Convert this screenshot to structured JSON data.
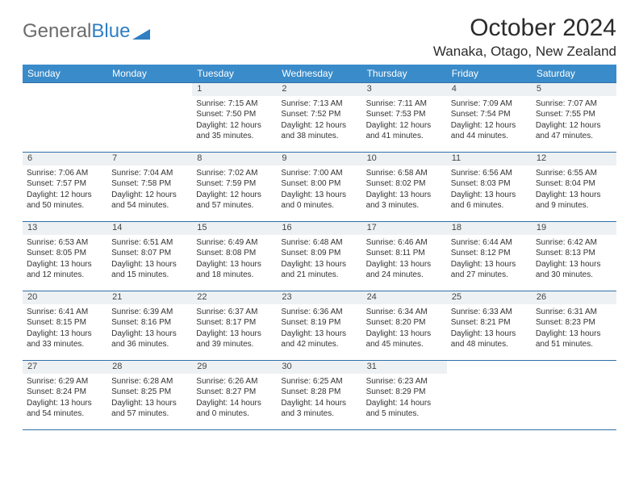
{
  "brand": {
    "general": "General",
    "blue": "Blue"
  },
  "title": "October 2024",
  "location": "Wanaka, Otago, New Zealand",
  "colors": {
    "header_bg": "#3a8bc9",
    "row_border": "#2f6fa8",
    "daynum_bg": "#eef1f3",
    "text": "#333333",
    "logo_gray": "#6b6b6b",
    "logo_blue": "#2f7fc2"
  },
  "weekdays": [
    "Sunday",
    "Monday",
    "Tuesday",
    "Wednesday",
    "Thursday",
    "Friday",
    "Saturday"
  ],
  "weeks": [
    [
      null,
      null,
      {
        "n": "1",
        "sr": "Sunrise: 7:15 AM",
        "ss": "Sunset: 7:50 PM",
        "dl": "Daylight: 12 hours and 35 minutes."
      },
      {
        "n": "2",
        "sr": "Sunrise: 7:13 AM",
        "ss": "Sunset: 7:52 PM",
        "dl": "Daylight: 12 hours and 38 minutes."
      },
      {
        "n": "3",
        "sr": "Sunrise: 7:11 AM",
        "ss": "Sunset: 7:53 PM",
        "dl": "Daylight: 12 hours and 41 minutes."
      },
      {
        "n": "4",
        "sr": "Sunrise: 7:09 AM",
        "ss": "Sunset: 7:54 PM",
        "dl": "Daylight: 12 hours and 44 minutes."
      },
      {
        "n": "5",
        "sr": "Sunrise: 7:07 AM",
        "ss": "Sunset: 7:55 PM",
        "dl": "Daylight: 12 hours and 47 minutes."
      }
    ],
    [
      {
        "n": "6",
        "sr": "Sunrise: 7:06 AM",
        "ss": "Sunset: 7:57 PM",
        "dl": "Daylight: 12 hours and 50 minutes."
      },
      {
        "n": "7",
        "sr": "Sunrise: 7:04 AM",
        "ss": "Sunset: 7:58 PM",
        "dl": "Daylight: 12 hours and 54 minutes."
      },
      {
        "n": "8",
        "sr": "Sunrise: 7:02 AM",
        "ss": "Sunset: 7:59 PM",
        "dl": "Daylight: 12 hours and 57 minutes."
      },
      {
        "n": "9",
        "sr": "Sunrise: 7:00 AM",
        "ss": "Sunset: 8:00 PM",
        "dl": "Daylight: 13 hours and 0 minutes."
      },
      {
        "n": "10",
        "sr": "Sunrise: 6:58 AM",
        "ss": "Sunset: 8:02 PM",
        "dl": "Daylight: 13 hours and 3 minutes."
      },
      {
        "n": "11",
        "sr": "Sunrise: 6:56 AM",
        "ss": "Sunset: 8:03 PM",
        "dl": "Daylight: 13 hours and 6 minutes."
      },
      {
        "n": "12",
        "sr": "Sunrise: 6:55 AM",
        "ss": "Sunset: 8:04 PM",
        "dl": "Daylight: 13 hours and 9 minutes."
      }
    ],
    [
      {
        "n": "13",
        "sr": "Sunrise: 6:53 AM",
        "ss": "Sunset: 8:05 PM",
        "dl": "Daylight: 13 hours and 12 minutes."
      },
      {
        "n": "14",
        "sr": "Sunrise: 6:51 AM",
        "ss": "Sunset: 8:07 PM",
        "dl": "Daylight: 13 hours and 15 minutes."
      },
      {
        "n": "15",
        "sr": "Sunrise: 6:49 AM",
        "ss": "Sunset: 8:08 PM",
        "dl": "Daylight: 13 hours and 18 minutes."
      },
      {
        "n": "16",
        "sr": "Sunrise: 6:48 AM",
        "ss": "Sunset: 8:09 PM",
        "dl": "Daylight: 13 hours and 21 minutes."
      },
      {
        "n": "17",
        "sr": "Sunrise: 6:46 AM",
        "ss": "Sunset: 8:11 PM",
        "dl": "Daylight: 13 hours and 24 minutes."
      },
      {
        "n": "18",
        "sr": "Sunrise: 6:44 AM",
        "ss": "Sunset: 8:12 PM",
        "dl": "Daylight: 13 hours and 27 minutes."
      },
      {
        "n": "19",
        "sr": "Sunrise: 6:42 AM",
        "ss": "Sunset: 8:13 PM",
        "dl": "Daylight: 13 hours and 30 minutes."
      }
    ],
    [
      {
        "n": "20",
        "sr": "Sunrise: 6:41 AM",
        "ss": "Sunset: 8:15 PM",
        "dl": "Daylight: 13 hours and 33 minutes."
      },
      {
        "n": "21",
        "sr": "Sunrise: 6:39 AM",
        "ss": "Sunset: 8:16 PM",
        "dl": "Daylight: 13 hours and 36 minutes."
      },
      {
        "n": "22",
        "sr": "Sunrise: 6:37 AM",
        "ss": "Sunset: 8:17 PM",
        "dl": "Daylight: 13 hours and 39 minutes."
      },
      {
        "n": "23",
        "sr": "Sunrise: 6:36 AM",
        "ss": "Sunset: 8:19 PM",
        "dl": "Daylight: 13 hours and 42 minutes."
      },
      {
        "n": "24",
        "sr": "Sunrise: 6:34 AM",
        "ss": "Sunset: 8:20 PM",
        "dl": "Daylight: 13 hours and 45 minutes."
      },
      {
        "n": "25",
        "sr": "Sunrise: 6:33 AM",
        "ss": "Sunset: 8:21 PM",
        "dl": "Daylight: 13 hours and 48 minutes."
      },
      {
        "n": "26",
        "sr": "Sunrise: 6:31 AM",
        "ss": "Sunset: 8:23 PM",
        "dl": "Daylight: 13 hours and 51 minutes."
      }
    ],
    [
      {
        "n": "27",
        "sr": "Sunrise: 6:29 AM",
        "ss": "Sunset: 8:24 PM",
        "dl": "Daylight: 13 hours and 54 minutes."
      },
      {
        "n": "28",
        "sr": "Sunrise: 6:28 AM",
        "ss": "Sunset: 8:25 PM",
        "dl": "Daylight: 13 hours and 57 minutes."
      },
      {
        "n": "29",
        "sr": "Sunrise: 6:26 AM",
        "ss": "Sunset: 8:27 PM",
        "dl": "Daylight: 14 hours and 0 minutes."
      },
      {
        "n": "30",
        "sr": "Sunrise: 6:25 AM",
        "ss": "Sunset: 8:28 PM",
        "dl": "Daylight: 14 hours and 3 minutes."
      },
      {
        "n": "31",
        "sr": "Sunrise: 6:23 AM",
        "ss": "Sunset: 8:29 PM",
        "dl": "Daylight: 14 hours and 5 minutes."
      },
      null,
      null
    ]
  ]
}
